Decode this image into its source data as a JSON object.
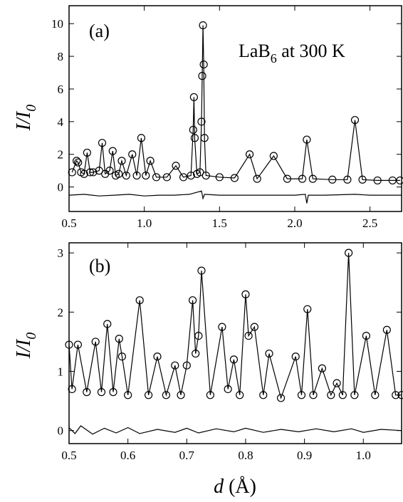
{
  "chart_data": [
    {
      "type": "line",
      "panel_label": "(a)",
      "annotation": "LaB",
      "annotation_sub": "6",
      "annotation_rest": " at 300 K",
      "ylabel": "I/I",
      "ylabel_sub": "0",
      "xlim": [
        0.5,
        2.71
      ],
      "ylim": [
        -1.5,
        11.1
      ],
      "xticks": [
        0.5,
        {
          "value": 1,
          "label": "1.0"
        },
        1.5,
        {
          "value": 2,
          "label": "2.0"
        },
        2.5
      ],
      "yticks": [
        0,
        2,
        4,
        6,
        8,
        10
      ],
      "x": [
        0.52,
        0.55,
        0.56,
        0.58,
        0.6,
        0.62,
        0.64,
        0.66,
        0.7,
        0.72,
        0.74,
        0.77,
        0.79,
        0.81,
        0.83,
        0.85,
        0.88,
        0.92,
        0.95,
        0.98,
        1.01,
        1.04,
        1.08,
        1.15,
        1.21,
        1.26,
        1.31,
        1.325,
        1.33,
        1.335,
        1.35,
        1.37,
        1.38,
        1.385,
        1.39,
        1.395,
        1.4,
        1.41,
        1.5,
        1.6,
        1.7,
        1.75,
        1.86,
        1.95,
        2.05,
        2.08,
        2.12,
        2.25,
        2.35,
        2.4,
        2.45,
        2.55,
        2.65,
        2.7
      ],
      "series": [
        {
          "color": "#000000",
          "marker": "circle",
          "values": [
            0.9,
            1.6,
            1.5,
            0.9,
            0.8,
            2.1,
            0.9,
            0.9,
            1.0,
            2.7,
            0.8,
            1.0,
            2.2,
            0.7,
            0.8,
            1.6,
            0.7,
            2.0,
            0.7,
            3.0,
            0.7,
            1.6,
            0.6,
            0.6,
            1.3,
            0.6,
            0.7,
            3.5,
            5.5,
            3.0,
            0.8,
            0.9,
            4.0,
            6.8,
            9.9,
            7.5,
            3.0,
            0.7,
            0.6,
            0.55,
            2.0,
            0.5,
            1.9,
            0.5,
            0.5,
            2.9,
            0.5,
            0.45,
            0.45,
            4.1,
            0.45,
            0.4,
            0.4,
            0.4
          ]
        },
        {
          "color": "#000000",
          "marker": "none",
          "values": [
            0.9,
            1.6,
            1.5,
            0.9,
            0.8,
            2.1,
            0.9,
            0.9,
            1.0,
            2.7,
            0.8,
            1.0,
            2.2,
            0.7,
            0.8,
            1.6,
            0.7,
            2.0,
            0.7,
            3.0,
            0.7,
            1.6,
            0.6,
            0.6,
            1.3,
            0.6,
            0.7,
            3.5,
            5.5,
            3.0,
            0.8,
            0.9,
            4.0,
            6.8,
            9.9,
            7.5,
            3.0,
            0.7,
            0.6,
            0.55,
            2.0,
            0.5,
            1.9,
            0.5,
            0.5,
            2.9,
            0.5,
            0.45,
            0.45,
            4.1,
            0.45,
            0.4,
            0.4,
            0.4
          ]
        },
        {
          "color": "#000000",
          "marker": "none",
          "x": [
            0.5,
            0.6,
            0.7,
            0.8,
            0.9,
            1.0,
            1.1,
            1.2,
            1.3,
            1.38,
            1.39,
            1.4,
            1.5,
            1.6,
            1.8,
            2.0,
            2.07,
            2.08,
            2.09,
            2.2,
            2.4,
            2.5,
            2.6,
            2.71
          ],
          "values": [
            -0.5,
            -0.45,
            -0.55,
            -0.5,
            -0.45,
            -0.55,
            -0.5,
            -0.5,
            -0.45,
            -0.25,
            -0.7,
            -0.45,
            -0.5,
            -0.5,
            -0.5,
            -0.5,
            -0.45,
            -1.0,
            -0.5,
            -0.5,
            -0.45,
            -0.5,
            -0.5,
            -0.5
          ]
        }
      ]
    },
    {
      "type": "line",
      "panel_label": "(b)",
      "ylabel": "I/I",
      "ylabel_sub": "0",
      "xlabel_var": "d",
      "xlabel_unit": " (Å)",
      "xlim": [
        0.5,
        1.065
      ],
      "ylim": [
        -0.22,
        3.17
      ],
      "xticks": [
        0.5,
        0.6,
        0.7,
        0.8,
        0.9,
        {
          "value": 1,
          "label": "1.0"
        }
      ],
      "yticks": [
        0,
        1,
        2,
        3
      ],
      "x": [
        0.5,
        0.505,
        0.515,
        0.53,
        0.545,
        0.555,
        0.565,
        0.575,
        0.585,
        0.59,
        0.6,
        0.62,
        0.635,
        0.65,
        0.665,
        0.68,
        0.69,
        0.7,
        0.71,
        0.715,
        0.72,
        0.725,
        0.74,
        0.76,
        0.77,
        0.78,
        0.79,
        0.8,
        0.805,
        0.815,
        0.83,
        0.84,
        0.86,
        0.885,
        0.895,
        0.905,
        0.915,
        0.93,
        0.945,
        0.955,
        0.965,
        0.975,
        0.985,
        1.005,
        1.02,
        1.04,
        1.055,
        1.065
      ],
      "series": [
        {
          "color": "#000000",
          "marker": "circle",
          "values": [
            1.45,
            0.7,
            1.45,
            0.65,
            1.5,
            0.65,
            1.8,
            0.65,
            1.55,
            1.25,
            0.6,
            2.2,
            0.6,
            1.25,
            0.6,
            1.1,
            0.6,
            1.1,
            2.2,
            1.3,
            1.6,
            2.7,
            0.6,
            1.75,
            0.7,
            1.2,
            0.6,
            2.3,
            1.6,
            1.75,
            0.6,
            1.3,
            0.55,
            1.25,
            0.6,
            2.05,
            0.6,
            1.05,
            0.6,
            0.8,
            0.6,
            3.0,
            0.6,
            1.6,
            0.6,
            1.7,
            0.6,
            0.6
          ]
        },
        {
          "color": "#000000",
          "marker": "none",
          "values": [
            1.45,
            0.7,
            1.45,
            0.65,
            1.5,
            0.65,
            1.8,
            0.65,
            1.55,
            1.25,
            0.6,
            2.2,
            0.6,
            1.25,
            0.6,
            1.1,
            0.6,
            1.1,
            2.2,
            1.3,
            1.6,
            2.7,
            0.6,
            1.75,
            0.7,
            1.2,
            0.6,
            2.3,
            1.6,
            1.75,
            0.6,
            1.3,
            0.55,
            1.25,
            0.6,
            2.05,
            0.6,
            1.05,
            0.6,
            0.8,
            0.6,
            3.0,
            0.6,
            1.6,
            0.6,
            1.7,
            0.6,
            0.6
          ]
        },
        {
          "color": "#000000",
          "marker": "none",
          "x": [
            0.5,
            0.51,
            0.52,
            0.54,
            0.56,
            0.58,
            0.6,
            0.62,
            0.65,
            0.68,
            0.7,
            0.72,
            0.75,
            0.78,
            0.8,
            0.83,
            0.86,
            0.89,
            0.92,
            0.95,
            0.98,
            1.0,
            1.03,
            1.065
          ],
          "values": [
            0.05,
            -0.05,
            0.08,
            -0.06,
            0.04,
            -0.04,
            0.05,
            -0.05,
            0.02,
            -0.03,
            0.04,
            -0.04,
            0.03,
            -0.02,
            0.04,
            -0.03,
            0.02,
            -0.02,
            0.03,
            -0.02,
            0.03,
            -0.03,
            0.02,
            0.0
          ]
        }
      ]
    }
  ]
}
